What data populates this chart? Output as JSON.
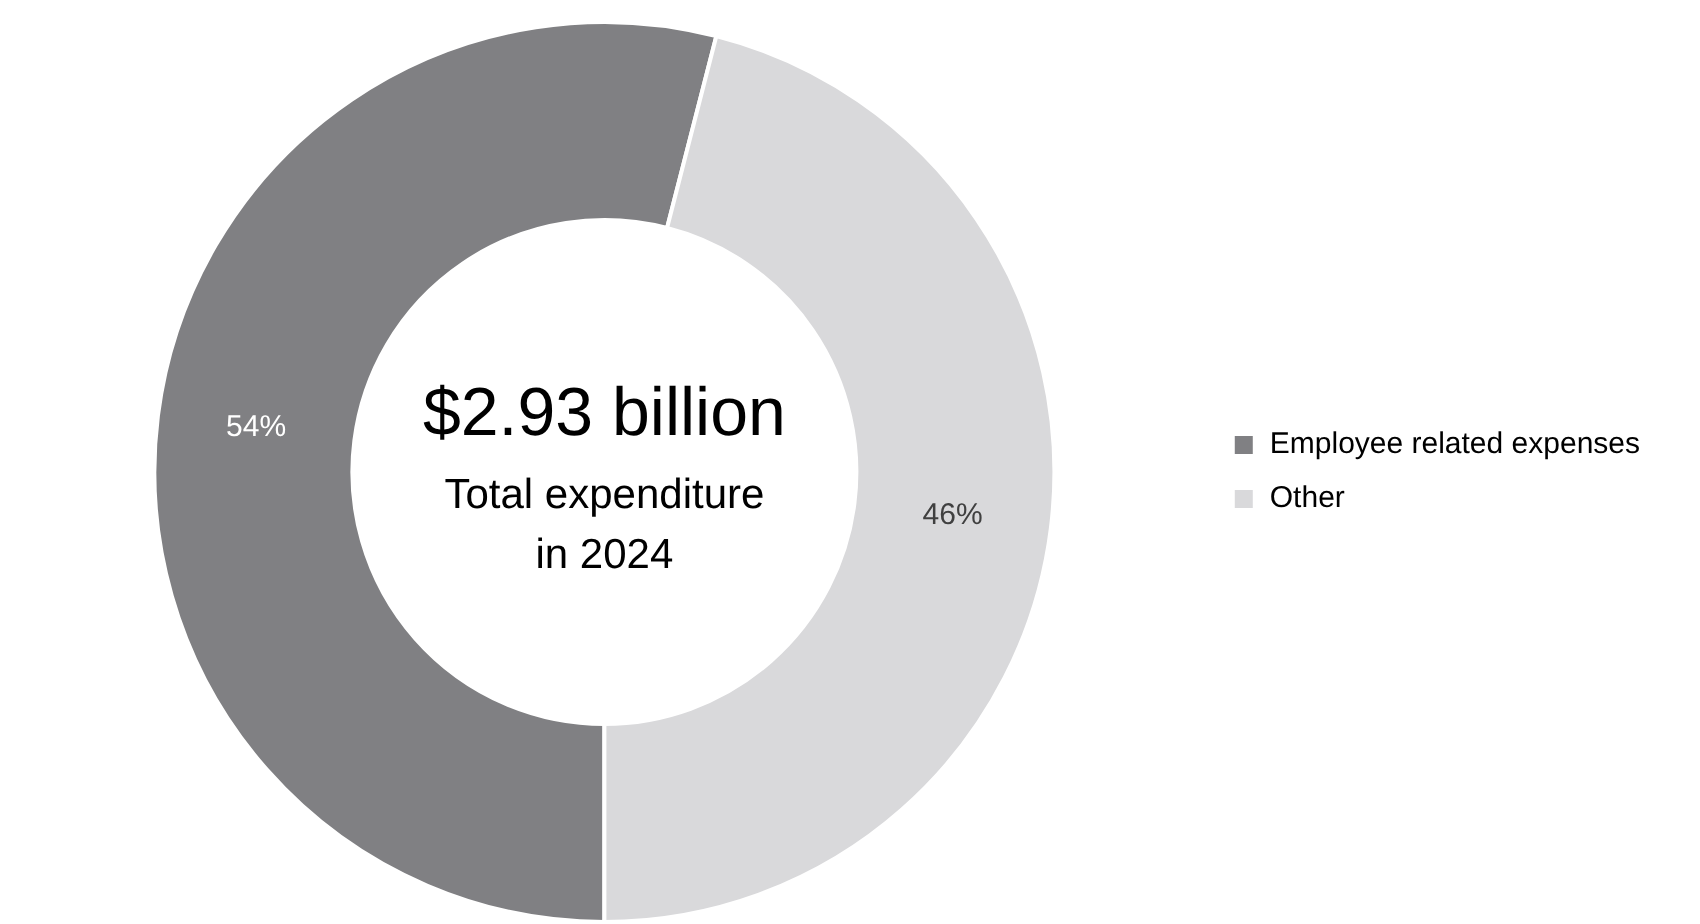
{
  "chart_data": {
    "type": "donut",
    "categories": [
      "Employee related expenses",
      "Other"
    ],
    "values": [
      54,
      46
    ],
    "colors": [
      "#808083",
      "#d9d9db"
    ],
    "value_labels": [
      "54%",
      "46%"
    ],
    "legend": "right",
    "annotations": [
      "$2.93 billion",
      "Total expenditure",
      "in 2024"
    ]
  }
}
